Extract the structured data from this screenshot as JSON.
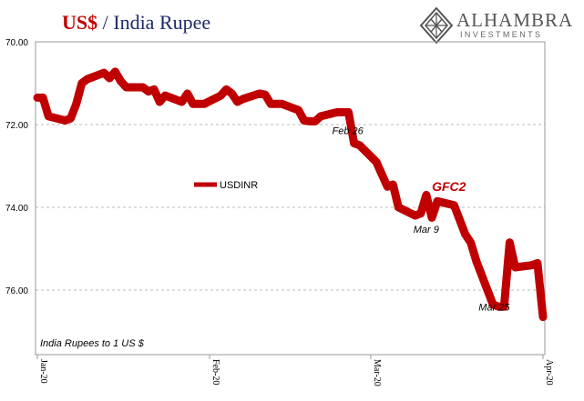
{
  "title": {
    "part1": "US$",
    "part2": " / India Rupee"
  },
  "logo": {
    "name": "ALHAMBRA",
    "sub": "INVESTMENTS"
  },
  "chart_data": {
    "type": "line",
    "title": "US$ / India Rupee",
    "ylim": [
      70,
      77.5
    ],
    "y_inverted": true,
    "y_ticks": [
      70,
      72,
      74,
      76
    ],
    "y_tick_labels": [
      "70.00",
      "72.00",
      "74.00",
      "76.00"
    ],
    "x_ticks": [
      "2020-01-01",
      "2020-02-01",
      "2020-03-01",
      "2020-04-01"
    ],
    "x_tick_labels": [
      "Jan-20",
      "Feb-20",
      "Mar-20",
      "Apr-20"
    ],
    "xlim": [
      "2020-01-01",
      "2020-04-01"
    ],
    "grid": true,
    "legend": {
      "label": "USDINR",
      "position": "center-left"
    },
    "annotations": [
      {
        "text": "Feb 26",
        "x": "2020-02-26",
        "y": 72.1
      },
      {
        "text": "GFC2",
        "x": "2020-03-13",
        "y": 73.45
      },
      {
        "text": "Mar 9",
        "x": "2020-03-09",
        "y": 74.4
      },
      {
        "text": "Mar 25",
        "x": "2020-03-25",
        "y": 76.3
      }
    ],
    "note": "India Rupees to 1 US $",
    "series": [
      {
        "name": "USDINR",
        "color": "#c00000",
        "points": [
          [
            "2020-01-01",
            71.35
          ],
          [
            "2020-01-02",
            71.35
          ],
          [
            "2020-01-03",
            71.8
          ],
          [
            "2020-01-06",
            71.9
          ],
          [
            "2020-01-07",
            71.85
          ],
          [
            "2020-01-08",
            71.5
          ],
          [
            "2020-01-09",
            71.0
          ],
          [
            "2020-01-10",
            70.9
          ],
          [
            "2020-01-13",
            70.75
          ],
          [
            "2020-01-14",
            70.88
          ],
          [
            "2020-01-15",
            70.72
          ],
          [
            "2020-01-16",
            70.95
          ],
          [
            "2020-01-17",
            71.1
          ],
          [
            "2020-01-20",
            71.1
          ],
          [
            "2020-01-21",
            71.2
          ],
          [
            "2020-01-22",
            71.15
          ],
          [
            "2020-01-23",
            71.45
          ],
          [
            "2020-01-24",
            71.3
          ],
          [
            "2020-01-27",
            71.45
          ],
          [
            "2020-01-28",
            71.25
          ],
          [
            "2020-01-29",
            71.5
          ],
          [
            "2020-01-30",
            71.5
          ],
          [
            "2020-01-31",
            71.5
          ],
          [
            "2020-02-03",
            71.3
          ],
          [
            "2020-02-04",
            71.15
          ],
          [
            "2020-02-05",
            71.25
          ],
          [
            "2020-02-06",
            71.45
          ],
          [
            "2020-02-07",
            71.38
          ],
          [
            "2020-02-10",
            71.25
          ],
          [
            "2020-02-11",
            71.28
          ],
          [
            "2020-02-12",
            71.5
          ],
          [
            "2020-02-13",
            71.5
          ],
          [
            "2020-02-14",
            71.5
          ],
          [
            "2020-02-17",
            71.65
          ],
          [
            "2020-02-18",
            71.9
          ],
          [
            "2020-02-19",
            71.92
          ],
          [
            "2020-02-20",
            71.92
          ],
          [
            "2020-02-21",
            71.8
          ],
          [
            "2020-02-24",
            71.7
          ],
          [
            "2020-02-26",
            71.7
          ],
          [
            "2020-02-27",
            72.45
          ],
          [
            "2020-02-28",
            72.5
          ],
          [
            "2020-03-02",
            72.9
          ],
          [
            "2020-03-03",
            73.2
          ],
          [
            "2020-03-04",
            73.5
          ],
          [
            "2020-03-05",
            73.45
          ],
          [
            "2020-03-06",
            74.0
          ],
          [
            "2020-03-09",
            74.2
          ],
          [
            "2020-03-10",
            74.15
          ],
          [
            "2020-03-11",
            73.7
          ],
          [
            "2020-03-12",
            74.25
          ],
          [
            "2020-03-13",
            73.85
          ],
          [
            "2020-03-16",
            73.95
          ],
          [
            "2020-03-17",
            74.3
          ],
          [
            "2020-03-18",
            74.65
          ],
          [
            "2020-03-19",
            74.85
          ],
          [
            "2020-03-20",
            75.3
          ],
          [
            "2020-03-23",
            76.35
          ],
          [
            "2020-03-24",
            76.4
          ],
          [
            "2020-03-25",
            76.4
          ],
          [
            "2020-03-26",
            74.85
          ],
          [
            "2020-03-27",
            75.45
          ],
          [
            "2020-03-30",
            75.4
          ],
          [
            "2020-03-31",
            75.35
          ],
          [
            "2020-04-01",
            76.65
          ]
        ]
      }
    ]
  }
}
